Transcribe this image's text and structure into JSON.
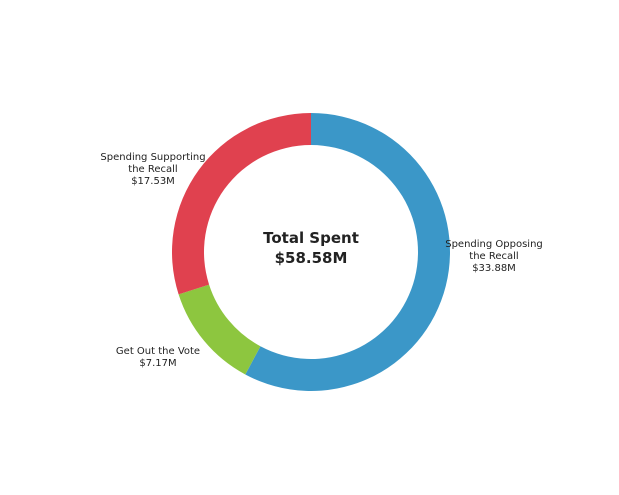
{
  "chart_data": {
    "type": "pie",
    "donut": true,
    "center": {
      "title": "Total Spent",
      "value": "$58.58M"
    },
    "slices": [
      {
        "name": "Spending Opposing the Recall",
        "label_lines": [
          "Spending Opposing",
          "the Recall",
          "$33.88M"
        ],
        "value": 33.88,
        "color": "#3b97c8"
      },
      {
        "name": "Get Out the Vote",
        "label_lines": [
          "Get Out the Vote",
          "$7.17M"
        ],
        "value": 7.17,
        "color": "#8dc63f"
      },
      {
        "name": "Spending Supporting the Recall",
        "label_lines": [
          "Spending Supporting",
          "the Recall",
          "$17.53M"
        ],
        "value": 17.53,
        "color": "#e0414f"
      }
    ],
    "title": "",
    "legend": "none"
  }
}
